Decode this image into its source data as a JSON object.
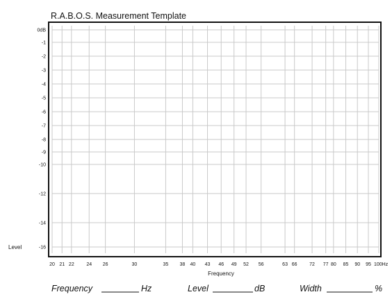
{
  "chart_data": {
    "type": "line",
    "title": "R.A.B.O.S. Measurement Template",
    "xlabel": "Frequency",
    "ylabel": "Level",
    "xscale": "log",
    "x_unit_suffix": "Hz",
    "y_unit_suffix": "dB",
    "x_ticks": [
      20,
      21,
      22,
      24,
      26,
      30,
      35,
      38,
      40,
      43,
      46,
      49,
      52,
      56,
      63,
      66,
      72,
      77,
      80,
      85,
      90,
      95,
      100
    ],
    "x_tick_labels": [
      "20",
      "21",
      "22",
      "24",
      "26",
      "30",
      "35",
      "38",
      "40",
      "43",
      "46",
      "49",
      "52",
      "56",
      "63",
      "66",
      "72",
      "77",
      "80",
      "85",
      "90",
      "95",
      "100Hz"
    ],
    "y_ticks": [
      0,
      -1,
      -2,
      -3,
      -4,
      -5,
      -6,
      -7,
      -8,
      -9,
      -10,
      -12,
      -14,
      -16
    ],
    "y_tick_labels": [
      "0dB",
      "-1",
      "-2",
      "-3",
      "-4",
      "-5",
      "-6",
      "-7",
      "-8",
      "-9",
      "-10",
      "-12",
      "-14",
      "-16"
    ],
    "y_scale_note": "nonlinear",
    "xlim": [
      20,
      100
    ],
    "ylim": [
      -16,
      0
    ],
    "grid": true,
    "series": []
  },
  "footer": {
    "frequency_label": "Frequency",
    "frequency_unit": "Hz",
    "level_label": "Level",
    "level_unit": "dB",
    "width_label": "Width",
    "width_unit": "%"
  }
}
